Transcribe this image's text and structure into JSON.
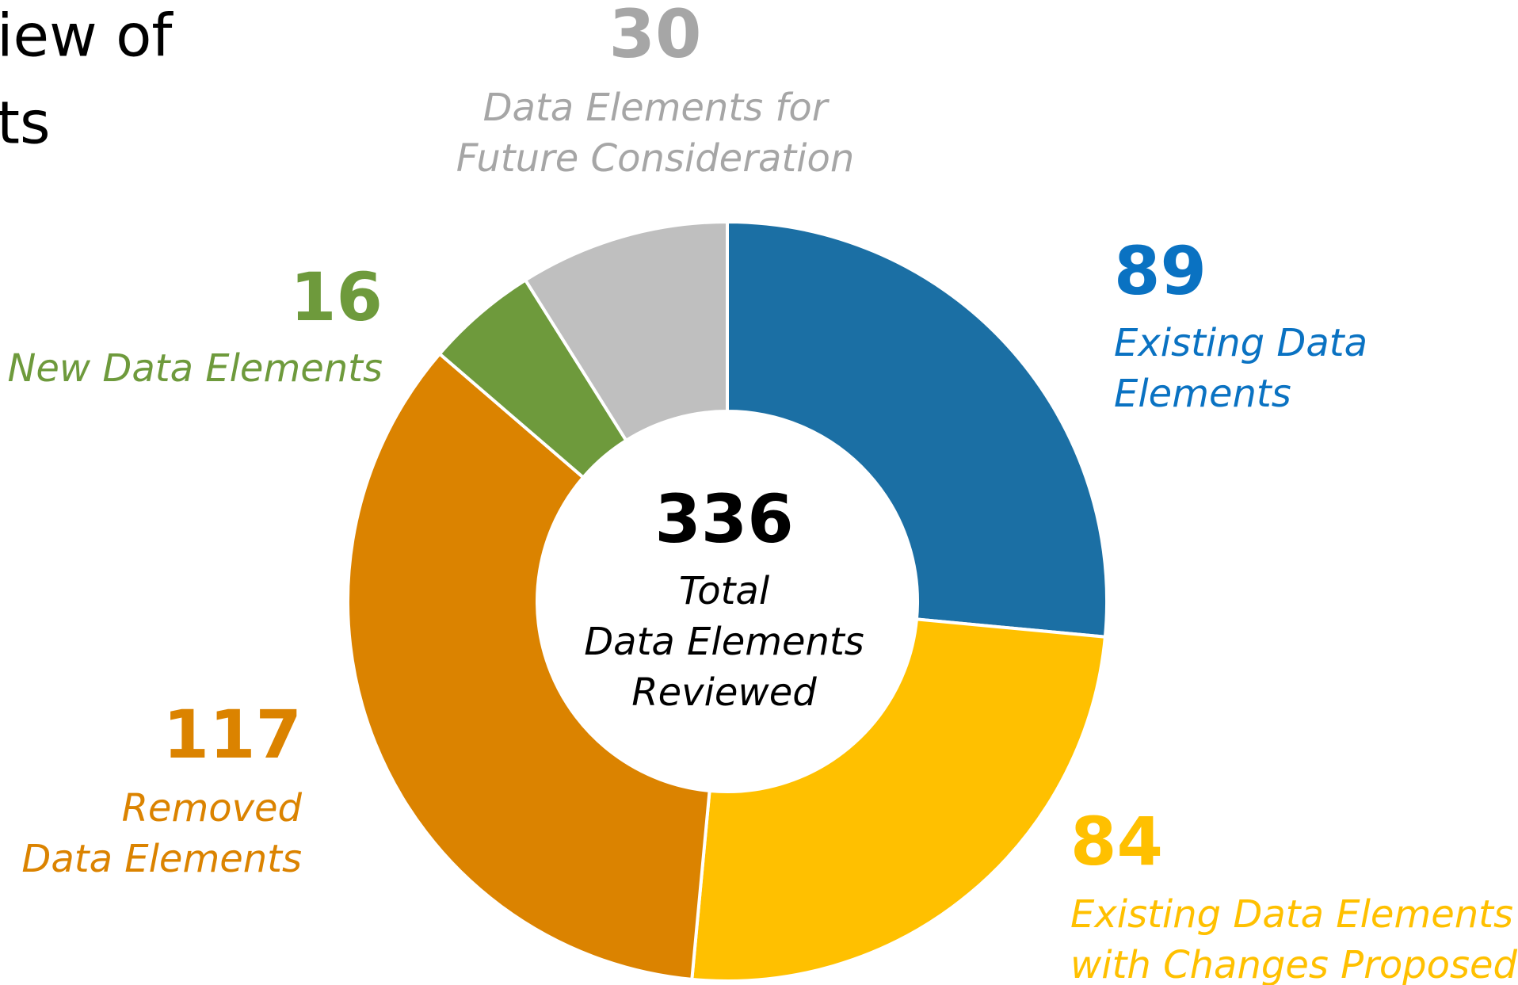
{
  "chart_data": {
    "type": "donut",
    "title_lines": [
      "iew of",
      "ts"
    ],
    "categories": [
      [
        "Existing Data",
        "Elements"
      ],
      [
        "Existing Data Elements",
        "with Changes Proposed"
      ],
      [
        "Removed",
        "Data Elements"
      ],
      [
        "New Data Elements"
      ],
      [
        "Data Elements for",
        "Future Consideration"
      ]
    ],
    "values": [
      89,
      84,
      117,
      16,
      30
    ],
    "colors": [
      "#1b6fa4",
      "#ffc000",
      "#db8300",
      "#6e9a3c",
      "#bfbfbf"
    ],
    "label_colors": [
      "#0a72c2",
      "#ffc000",
      "#db8300",
      "#6e9a3c",
      "#a6a6a6"
    ],
    "center_value": 336,
    "center_label": [
      "Total",
      "Data Elements",
      "Reviewed"
    ]
  }
}
